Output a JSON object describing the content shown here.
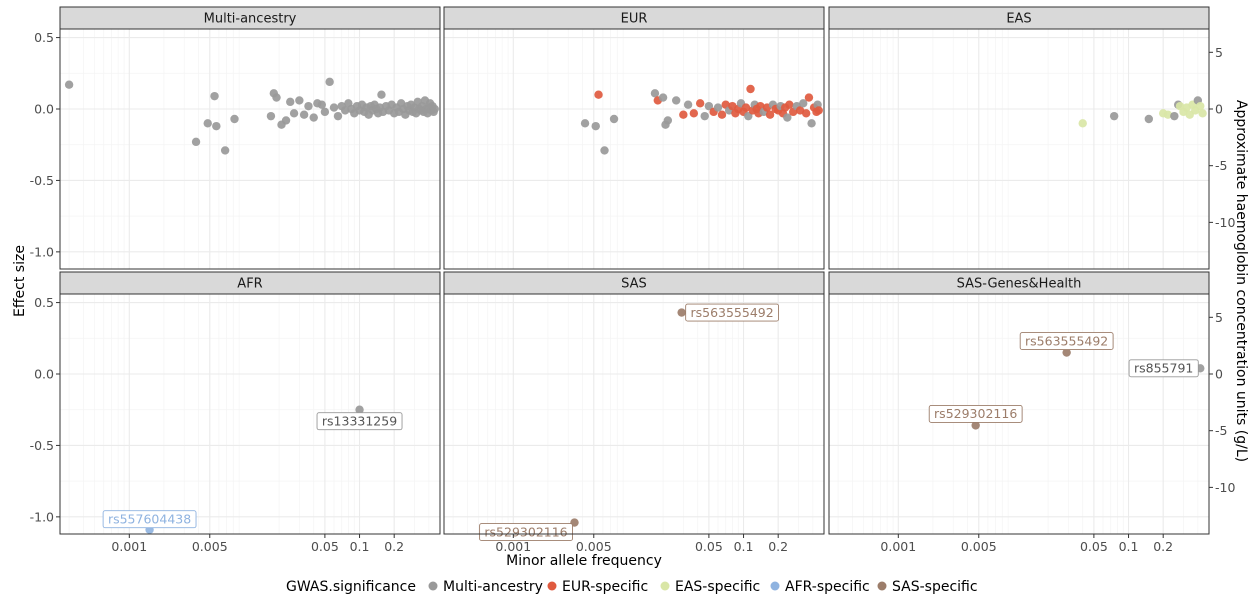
{
  "colors": {
    "Multi-ancestry": "#999999",
    "EUR-specific": "#e05a3f",
    "EAS-specific": "#d9e6a6",
    "AFR-specific": "#8fb3e0",
    "SAS-specific": "#9c7d6a",
    "strip_fill": "#d9d9d9",
    "panel_border": "#333333",
    "grid_major": "#ebebeb",
    "grid_minor": "#f4f4f4"
  },
  "chart_data": {
    "type": "scatter",
    "title": "",
    "xlabel": "Minor allele frequency",
    "ylabel": "Effect size",
    "y2label": "Approximate haemoglobin concentration units (g/L)",
    "x_scale": "log",
    "xlim": [
      0.00025,
      0.5
    ],
    "ylim": [
      -1.12,
      0.56
    ],
    "x_ticks": [
      0.001,
      0.005,
      0.05,
      0.1,
      0.2
    ],
    "x_tick_labels": [
      "0.001",
      "0.005",
      "0.05",
      "0.1",
      "0.2"
    ],
    "y_ticks": [
      0.5,
      0.0,
      -0.5,
      -1.0
    ],
    "y_tick_labels": [
      "0.5",
      "0.0",
      "-0.5",
      "-1.0"
    ],
    "y2_ticks": [
      5,
      0,
      -5,
      -10
    ],
    "y2_tick_labels": [
      "5",
      "0",
      "-5",
      "-10"
    ],
    "y2_scale_factor": 12.6,
    "grid": true,
    "legend": {
      "title": "GWAS.significance",
      "position": "bottom",
      "entries": [
        "Multi-ancestry",
        "EUR-specific",
        "EAS-specific",
        "AFR-specific",
        "SAS-specific"
      ]
    },
    "panels": [
      {
        "name": "Multi-ancestry",
        "points": [
          {
            "x": 0.0003,
            "y": 0.17,
            "group": "Multi-ancestry"
          },
          {
            "x": 0.0038,
            "y": -0.23,
            "group": "Multi-ancestry"
          },
          {
            "x": 0.0048,
            "y": -0.1,
            "group": "Multi-ancestry"
          },
          {
            "x": 0.0055,
            "y": 0.09,
            "group": "Multi-ancestry"
          },
          {
            "x": 0.0057,
            "y": -0.12,
            "group": "Multi-ancestry"
          },
          {
            "x": 0.0068,
            "y": -0.29,
            "group": "Multi-ancestry"
          },
          {
            "x": 0.0082,
            "y": -0.07,
            "group": "Multi-ancestry"
          },
          {
            "x": 0.017,
            "y": -0.05,
            "group": "Multi-ancestry"
          },
          {
            "x": 0.018,
            "y": 0.11,
            "group": "Multi-ancestry"
          },
          {
            "x": 0.019,
            "y": 0.08,
            "group": "Multi-ancestry"
          },
          {
            "x": 0.021,
            "y": -0.11,
            "group": "Multi-ancestry"
          },
          {
            "x": 0.023,
            "y": -0.08,
            "group": "Multi-ancestry"
          },
          {
            "x": 0.025,
            "y": 0.05,
            "group": "Multi-ancestry"
          },
          {
            "x": 0.027,
            "y": -0.03,
            "group": "Multi-ancestry"
          },
          {
            "x": 0.03,
            "y": 0.06,
            "group": "Multi-ancestry"
          },
          {
            "x": 0.033,
            "y": -0.04,
            "group": "Multi-ancestry"
          },
          {
            "x": 0.036,
            "y": 0.02,
            "group": "Multi-ancestry"
          },
          {
            "x": 0.04,
            "y": -0.06,
            "group": "Multi-ancestry"
          },
          {
            "x": 0.043,
            "y": 0.04,
            "group": "Multi-ancestry"
          },
          {
            "x": 0.047,
            "y": 0.03,
            "group": "Multi-ancestry"
          },
          {
            "x": 0.05,
            "y": -0.02,
            "group": "Multi-ancestry"
          },
          {
            "x": 0.055,
            "y": 0.19,
            "group": "Multi-ancestry"
          },
          {
            "x": 0.06,
            "y": 0.01,
            "group": "Multi-ancestry"
          },
          {
            "x": 0.065,
            "y": -0.05,
            "group": "Multi-ancestry"
          },
          {
            "x": 0.07,
            "y": 0.02,
            "group": "Multi-ancestry"
          },
          {
            "x": 0.075,
            "y": -0.01,
            "group": "Multi-ancestry"
          },
          {
            "x": 0.08,
            "y": 0.04,
            "group": "Multi-ancestry"
          },
          {
            "x": 0.085,
            "y": 0.0,
            "group": "Multi-ancestry"
          },
          {
            "x": 0.09,
            "y": -0.03,
            "group": "Multi-ancestry"
          },
          {
            "x": 0.095,
            "y": 0.02,
            "group": "Multi-ancestry"
          },
          {
            "x": 0.1,
            "y": -0.01,
            "group": "Multi-ancestry"
          },
          {
            "x": 0.105,
            "y": 0.03,
            "group": "Multi-ancestry"
          },
          {
            "x": 0.11,
            "y": -0.02,
            "group": "Multi-ancestry"
          },
          {
            "x": 0.115,
            "y": 0.01,
            "group": "Multi-ancestry"
          },
          {
            "x": 0.12,
            "y": -0.04,
            "group": "Multi-ancestry"
          },
          {
            "x": 0.125,
            "y": 0.02,
            "group": "Multi-ancestry"
          },
          {
            "x": 0.13,
            "y": -0.01,
            "group": "Multi-ancestry"
          },
          {
            "x": 0.135,
            "y": 0.03,
            "group": "Multi-ancestry"
          },
          {
            "x": 0.14,
            "y": 0.0,
            "group": "Multi-ancestry"
          },
          {
            "x": 0.145,
            "y": -0.03,
            "group": "Multi-ancestry"
          },
          {
            "x": 0.15,
            "y": 0.01,
            "group": "Multi-ancestry"
          },
          {
            "x": 0.155,
            "y": 0.1,
            "group": "Multi-ancestry"
          },
          {
            "x": 0.16,
            "y": -0.02,
            "group": "Multi-ancestry"
          },
          {
            "x": 0.17,
            "y": 0.02,
            "group": "Multi-ancestry"
          },
          {
            "x": 0.18,
            "y": -0.01,
            "group": "Multi-ancestry"
          },
          {
            "x": 0.19,
            "y": 0.03,
            "group": "Multi-ancestry"
          },
          {
            "x": 0.2,
            "y": -0.03,
            "group": "Multi-ancestry"
          },
          {
            "x": 0.21,
            "y": 0.01,
            "group": "Multi-ancestry"
          },
          {
            "x": 0.22,
            "y": -0.02,
            "group": "Multi-ancestry"
          },
          {
            "x": 0.23,
            "y": 0.04,
            "group": "Multi-ancestry"
          },
          {
            "x": 0.24,
            "y": 0.0,
            "group": "Multi-ancestry"
          },
          {
            "x": 0.25,
            "y": -0.04,
            "group": "Multi-ancestry"
          },
          {
            "x": 0.26,
            "y": 0.02,
            "group": "Multi-ancestry"
          },
          {
            "x": 0.27,
            "y": -0.01,
            "group": "Multi-ancestry"
          },
          {
            "x": 0.28,
            "y": 0.03,
            "group": "Multi-ancestry"
          },
          {
            "x": 0.29,
            "y": -0.02,
            "group": "Multi-ancestry"
          },
          {
            "x": 0.3,
            "y": 0.01,
            "group": "Multi-ancestry"
          },
          {
            "x": 0.31,
            "y": -0.03,
            "group": "Multi-ancestry"
          },
          {
            "x": 0.32,
            "y": 0.05,
            "group": "Multi-ancestry"
          },
          {
            "x": 0.33,
            "y": 0.0,
            "group": "Multi-ancestry"
          },
          {
            "x": 0.34,
            "y": -0.01,
            "group": "Multi-ancestry"
          },
          {
            "x": 0.35,
            "y": 0.02,
            "group": "Multi-ancestry"
          },
          {
            "x": 0.36,
            "y": -0.02,
            "group": "Multi-ancestry"
          },
          {
            "x": 0.37,
            "y": 0.06,
            "group": "Multi-ancestry"
          },
          {
            "x": 0.38,
            "y": 0.0,
            "group": "Multi-ancestry"
          },
          {
            "x": 0.39,
            "y": -0.03,
            "group": "Multi-ancestry"
          },
          {
            "x": 0.4,
            "y": 0.01,
            "group": "Multi-ancestry"
          },
          {
            "x": 0.41,
            "y": 0.04,
            "group": "Multi-ancestry"
          },
          {
            "x": 0.42,
            "y": -0.01,
            "group": "Multi-ancestry"
          },
          {
            "x": 0.43,
            "y": 0.02,
            "group": "Multi-ancestry"
          },
          {
            "x": 0.44,
            "y": -0.02,
            "group": "Multi-ancestry"
          },
          {
            "x": 0.45,
            "y": 0.0,
            "group": "Multi-ancestry"
          }
        ],
        "labels": []
      },
      {
        "name": "EUR",
        "points": [
          {
            "x": 0.0042,
            "y": -0.1,
            "group": "Multi-ancestry"
          },
          {
            "x": 0.0052,
            "y": -0.12,
            "group": "Multi-ancestry"
          },
          {
            "x": 0.0055,
            "y": 0.1,
            "group": "EUR-specific"
          },
          {
            "x": 0.0062,
            "y": -0.29,
            "group": "Multi-ancestry"
          },
          {
            "x": 0.0075,
            "y": -0.07,
            "group": "Multi-ancestry"
          },
          {
            "x": 0.017,
            "y": 0.11,
            "group": "Multi-ancestry"
          },
          {
            "x": 0.018,
            "y": 0.06,
            "group": "EUR-specific"
          },
          {
            "x": 0.02,
            "y": 0.08,
            "group": "Multi-ancestry"
          },
          {
            "x": 0.021,
            "y": -0.11,
            "group": "Multi-ancestry"
          },
          {
            "x": 0.022,
            "y": -0.08,
            "group": "Multi-ancestry"
          },
          {
            "x": 0.026,
            "y": 0.06,
            "group": "Multi-ancestry"
          },
          {
            "x": 0.03,
            "y": -0.04,
            "group": "EUR-specific"
          },
          {
            "x": 0.033,
            "y": 0.03,
            "group": "Multi-ancestry"
          },
          {
            "x": 0.037,
            "y": -0.03,
            "group": "EUR-specific"
          },
          {
            "x": 0.042,
            "y": 0.04,
            "group": "EUR-specific"
          },
          {
            "x": 0.046,
            "y": -0.05,
            "group": "Multi-ancestry"
          },
          {
            "x": 0.05,
            "y": 0.02,
            "group": "Multi-ancestry"
          },
          {
            "x": 0.055,
            "y": -0.02,
            "group": "EUR-specific"
          },
          {
            "x": 0.06,
            "y": 0.01,
            "group": "Multi-ancestry"
          },
          {
            "x": 0.065,
            "y": -0.04,
            "group": "EUR-specific"
          },
          {
            "x": 0.07,
            "y": 0.03,
            "group": "EUR-specific"
          },
          {
            "x": 0.075,
            "y": -0.01,
            "group": "Multi-ancestry"
          },
          {
            "x": 0.08,
            "y": 0.02,
            "group": "EUR-specific"
          },
          {
            "x": 0.085,
            "y": -0.03,
            "group": "EUR-specific"
          },
          {
            "x": 0.09,
            "y": 0.0,
            "group": "EUR-specific"
          },
          {
            "x": 0.095,
            "y": 0.04,
            "group": "Multi-ancestry"
          },
          {
            "x": 0.1,
            "y": -0.02,
            "group": "EUR-specific"
          },
          {
            "x": 0.105,
            "y": 0.01,
            "group": "EUR-specific"
          },
          {
            "x": 0.11,
            "y": -0.05,
            "group": "Multi-ancestry"
          },
          {
            "x": 0.115,
            "y": 0.14,
            "group": "EUR-specific"
          },
          {
            "x": 0.12,
            "y": -0.01,
            "group": "EUR-specific"
          },
          {
            "x": 0.125,
            "y": 0.03,
            "group": "Multi-ancestry"
          },
          {
            "x": 0.13,
            "y": 0.0,
            "group": "EUR-specific"
          },
          {
            "x": 0.135,
            "y": -0.03,
            "group": "EUR-specific"
          },
          {
            "x": 0.14,
            "y": 0.02,
            "group": "EUR-specific"
          },
          {
            "x": 0.15,
            "y": -0.02,
            "group": "Multi-ancestry"
          },
          {
            "x": 0.16,
            "y": 0.01,
            "group": "EUR-specific"
          },
          {
            "x": 0.17,
            "y": -0.04,
            "group": "EUR-specific"
          },
          {
            "x": 0.18,
            "y": 0.03,
            "group": "Multi-ancestry"
          },
          {
            "x": 0.19,
            "y": 0.0,
            "group": "EUR-specific"
          },
          {
            "x": 0.2,
            "y": -0.01,
            "group": "EUR-specific"
          },
          {
            "x": 0.21,
            "y": 0.02,
            "group": "Multi-ancestry"
          },
          {
            "x": 0.22,
            "y": -0.03,
            "group": "EUR-specific"
          },
          {
            "x": 0.23,
            "y": 0.01,
            "group": "EUR-specific"
          },
          {
            "x": 0.24,
            "y": -0.06,
            "group": "Multi-ancestry"
          },
          {
            "x": 0.25,
            "y": 0.03,
            "group": "EUR-specific"
          },
          {
            "x": 0.27,
            "y": -0.02,
            "group": "EUR-specific"
          },
          {
            "x": 0.29,
            "y": 0.02,
            "group": "Multi-ancestry"
          },
          {
            "x": 0.31,
            "y": -0.01,
            "group": "EUR-specific"
          },
          {
            "x": 0.33,
            "y": 0.04,
            "group": "Multi-ancestry"
          },
          {
            "x": 0.35,
            "y": -0.03,
            "group": "EUR-specific"
          },
          {
            "x": 0.37,
            "y": 0.08,
            "group": "EUR-specific"
          },
          {
            "x": 0.39,
            "y": -0.1,
            "group": "Multi-ancestry"
          },
          {
            "x": 0.41,
            "y": 0.01,
            "group": "EUR-specific"
          },
          {
            "x": 0.43,
            "y": -0.02,
            "group": "EUR-specific"
          },
          {
            "x": 0.44,
            "y": 0.03,
            "group": "Multi-ancestry"
          },
          {
            "x": 0.45,
            "y": -0.01,
            "group": "EUR-specific"
          }
        ],
        "labels": []
      },
      {
        "name": "EAS",
        "points": [
          {
            "x": 0.04,
            "y": -0.1,
            "group": "EAS-specific"
          },
          {
            "x": 0.075,
            "y": -0.05,
            "group": "Multi-ancestry"
          },
          {
            "x": 0.15,
            "y": -0.07,
            "group": "Multi-ancestry"
          },
          {
            "x": 0.2,
            "y": -0.03,
            "group": "EAS-specific"
          },
          {
            "x": 0.22,
            "y": -0.04,
            "group": "EAS-specific"
          },
          {
            "x": 0.25,
            "y": -0.05,
            "group": "Multi-ancestry"
          },
          {
            "x": 0.27,
            "y": 0.03,
            "group": "Multi-ancestry"
          },
          {
            "x": 0.28,
            "y": 0.02,
            "group": "EAS-specific"
          },
          {
            "x": 0.3,
            "y": -0.02,
            "group": "EAS-specific"
          },
          {
            "x": 0.32,
            "y": 0.01,
            "group": "EAS-specific"
          },
          {
            "x": 0.34,
            "y": -0.04,
            "group": "EAS-specific"
          },
          {
            "x": 0.36,
            "y": 0.03,
            "group": "EAS-specific"
          },
          {
            "x": 0.38,
            "y": -0.01,
            "group": "EAS-specific"
          },
          {
            "x": 0.4,
            "y": 0.06,
            "group": "Multi-ancestry"
          },
          {
            "x": 0.42,
            "y": 0.02,
            "group": "EAS-specific"
          },
          {
            "x": 0.44,
            "y": -0.03,
            "group": "EAS-specific"
          }
        ],
        "labels": []
      },
      {
        "name": "AFR",
        "points": [
          {
            "x": 0.0015,
            "y": -1.09,
            "group": "AFR-specific"
          },
          {
            "x": 0.1,
            "y": -0.25,
            "group": "Multi-ancestry"
          }
        ],
        "labels": [
          {
            "text": "rs557604438",
            "x": 0.0015,
            "y": -1.09,
            "group": "AFR-specific"
          },
          {
            "text": "rs13331259",
            "x": 0.1,
            "y": -0.25,
            "group": "Multi-ancestry"
          }
        ]
      },
      {
        "name": "SAS",
        "points": [
          {
            "x": 0.029,
            "y": 0.43,
            "group": "SAS-specific"
          },
          {
            "x": 0.0034,
            "y": -1.04,
            "group": "SAS-specific"
          }
        ],
        "labels": [
          {
            "text": "rs563555492",
            "x": 0.029,
            "y": 0.43,
            "group": "SAS-specific"
          },
          {
            "text": "rs529302116",
            "x": 0.0034,
            "y": -1.04,
            "group": "SAS-specific"
          }
        ]
      },
      {
        "name": "SAS-Genes&Health",
        "points": [
          {
            "x": 0.029,
            "y": 0.15,
            "group": "SAS-specific"
          },
          {
            "x": 0.0047,
            "y": -0.36,
            "group": "SAS-specific"
          },
          {
            "x": 0.42,
            "y": 0.04,
            "group": "Multi-ancestry"
          }
        ],
        "labels": [
          {
            "text": "rs563555492",
            "x": 0.029,
            "y": 0.15,
            "group": "SAS-specific"
          },
          {
            "text": "rs529302116",
            "x": 0.0047,
            "y": -0.36,
            "group": "SAS-specific"
          },
          {
            "text": "rs855791",
            "x": 0.42,
            "y": 0.04,
            "group": "Multi-ancestry"
          }
        ]
      }
    ]
  }
}
